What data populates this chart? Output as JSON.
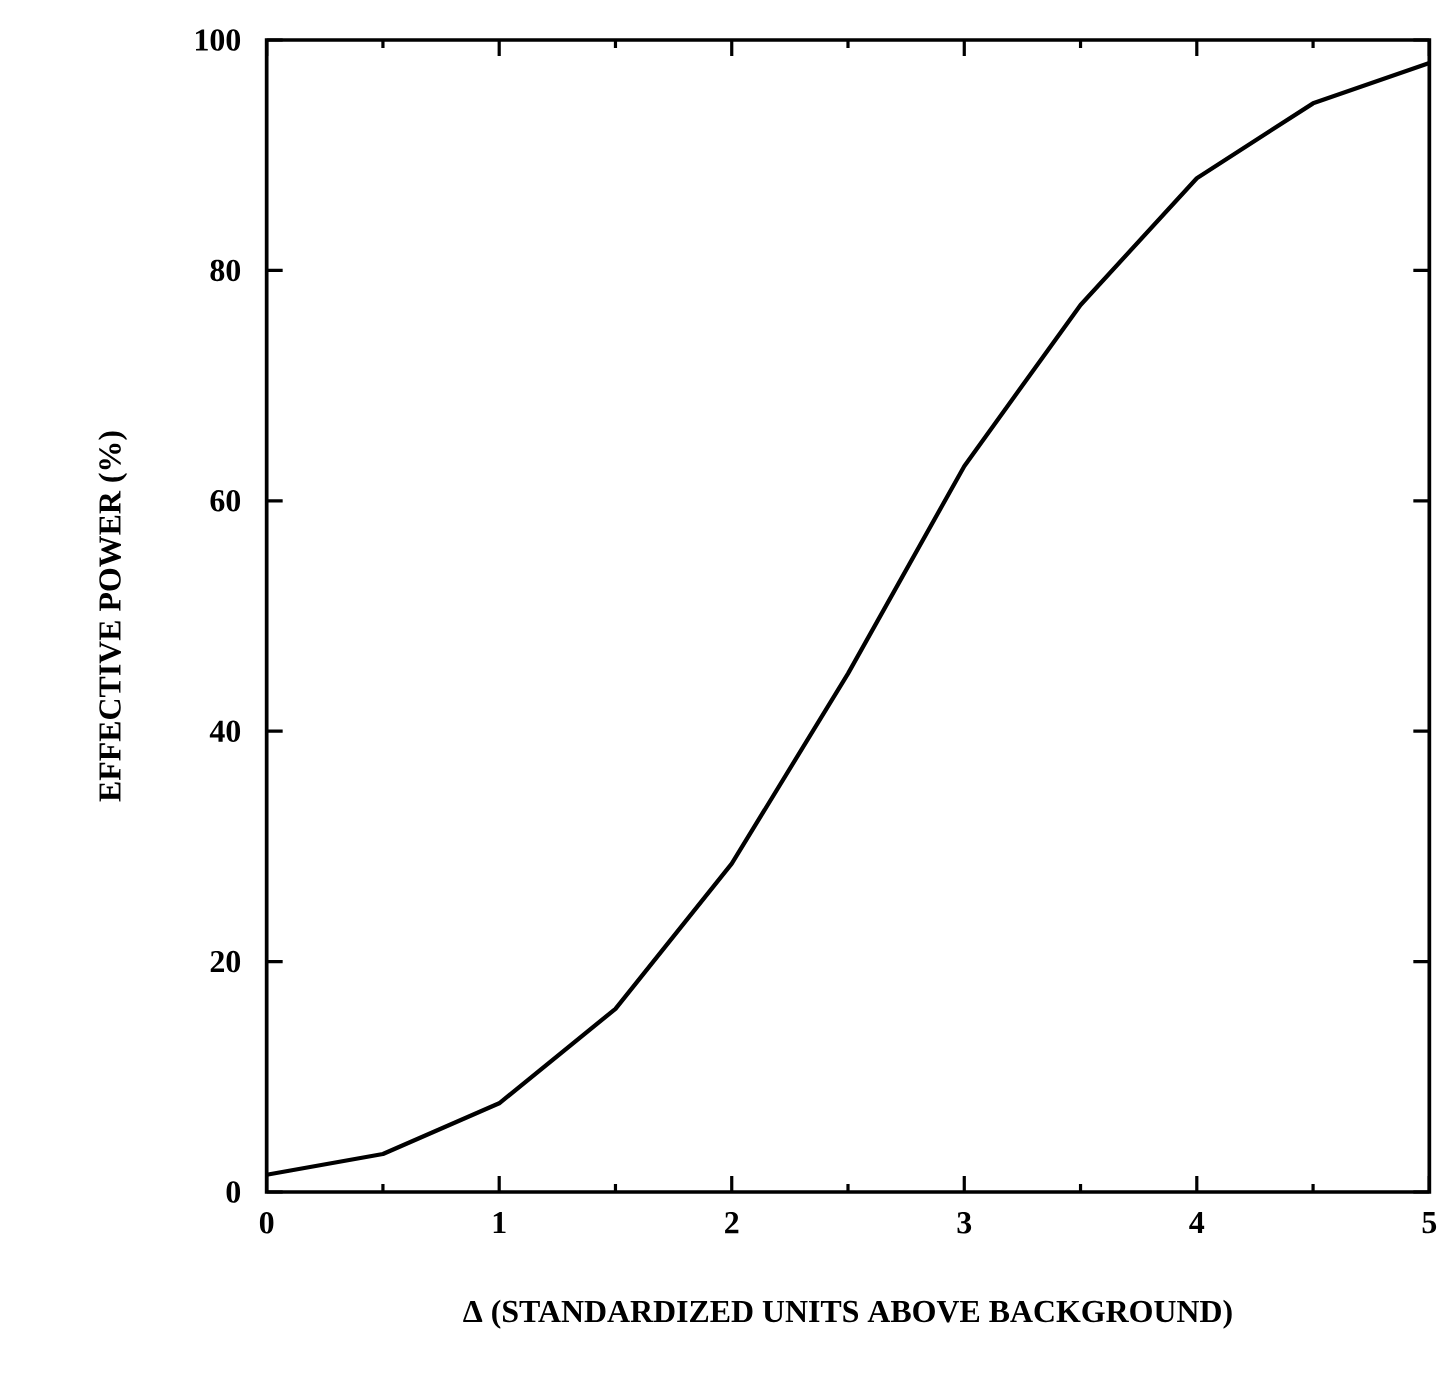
{
  "chart_data": {
    "type": "line",
    "xlabel": "Δ (STANDARDIZED UNITS ABOVE BACKGROUND)",
    "ylabel": "EFFECTIVE POWER (%)",
    "x": [
      0,
      0.5,
      1,
      1.5,
      2,
      2.5,
      3,
      3.5,
      4,
      4.5,
      5
    ],
    "series": [
      {
        "color": "#000000",
        "values": [
          1.5,
          3.3,
          7.7,
          15.9,
          28.5,
          45,
          63,
          77,
          88,
          94.5,
          98
        ]
      }
    ],
    "xlim": [
      0,
      5
    ],
    "ylim": [
      0,
      100
    ],
    "xticks": [
      0,
      1,
      2,
      3,
      4,
      5
    ],
    "yticks": [
      0,
      20,
      40,
      60,
      80,
      100
    ],
    "grid": false,
    "marker": "none",
    "line_style": "solid"
  }
}
